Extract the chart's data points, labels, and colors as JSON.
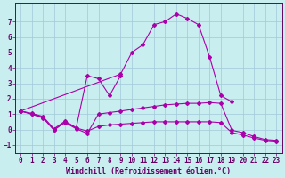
{
  "bg_color": "#c8eef0",
  "grid_color": "#a0c8d8",
  "line_color": "#aa00aa",
  "marker": "D",
  "markersize": 2,
  "xlabel": "Windchill (Refroidissement éolien,°C)",
  "xlabel_fontsize": 6,
  "tick_fontsize": 5.5,
  "xlim": [
    -0.5,
    23.5
  ],
  "ylim": [
    -1.5,
    8.2
  ],
  "yticks": [
    -1,
    0,
    1,
    2,
    3,
    4,
    5,
    6,
    7
  ],
  "xticks": [
    0,
    1,
    2,
    3,
    4,
    5,
    6,
    7,
    8,
    9,
    10,
    11,
    12,
    13,
    14,
    15,
    16,
    17,
    18,
    19,
    20,
    21,
    22,
    23
  ],
  "curve1_x": [
    0,
    1,
    2,
    3,
    4,
    5,
    6,
    7,
    8,
    9,
    10,
    11,
    12,
    13,
    14,
    15,
    16,
    17,
    18,
    19,
    20,
    21,
    22,
    23
  ],
  "curve1_y": [
    1.2,
    1.0,
    0.75,
    0.0,
    0.45,
    0.05,
    -0.25,
    1.0,
    1.1,
    1.2,
    1.3,
    1.4,
    1.5,
    1.6,
    1.65,
    1.7,
    1.7,
    1.75,
    1.7,
    -0.05,
    -0.2,
    -0.45,
    -0.65,
    -0.7
  ],
  "curve2_x": [
    0,
    1,
    2,
    3,
    4,
    5,
    6,
    7,
    8,
    9,
    10,
    11,
    12,
    13,
    14,
    15,
    16,
    17,
    18,
    19,
    20,
    21,
    22,
    23
  ],
  "curve2_y": [
    1.2,
    1.0,
    0.8,
    -0.05,
    0.5,
    0.1,
    -0.1,
    0.2,
    0.3,
    0.35,
    0.4,
    0.45,
    0.5,
    0.5,
    0.5,
    0.5,
    0.5,
    0.5,
    0.45,
    -0.2,
    -0.35,
    -0.55,
    -0.7,
    -0.75
  ],
  "curve3_x": [
    0,
    1,
    2,
    3,
    4,
    5,
    6,
    7,
    8,
    9
  ],
  "curve3_y": [
    1.2,
    1.05,
    0.85,
    0.05,
    0.55,
    0.12,
    3.5,
    3.3,
    2.2,
    3.5
  ],
  "curve4_x": [
    0,
    9,
    10,
    11,
    12,
    13,
    14,
    15,
    16,
    17,
    18,
    19
  ],
  "curve4_y": [
    1.2,
    3.6,
    5.0,
    5.5,
    6.8,
    7.0,
    7.5,
    7.2,
    6.8,
    4.7,
    2.2,
    1.8
  ]
}
